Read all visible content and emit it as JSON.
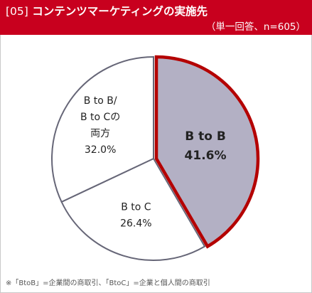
{
  "header": {
    "code": "[05]",
    "title": "コンテンツマーケティングの実施先",
    "subtitle": "（単一回答、n=605）"
  },
  "footnote": "※「BtoB」=企業間の商取引、「BtoC」=企業と個人間の商取引",
  "colors": {
    "header_bg": "#c8001e",
    "highlight_fill": "#b3b0c4",
    "highlight_stroke": "#b40000",
    "slice_fill": "#ffffff",
    "slice_stroke": "#666677"
  },
  "chart_data": {
    "type": "pie",
    "title": "コンテンツマーケティングの実施先",
    "unit": "%",
    "slices": [
      {
        "label_lines": [
          "B to B"
        ],
        "value": 41.6,
        "value_label": "41.6%",
        "highlight": true
      },
      {
        "label_lines": [
          "B to C"
        ],
        "value": 26.4,
        "value_label": "26.4%",
        "highlight": false
      },
      {
        "label_lines": [
          "B to B/",
          "B to Cの",
          "両方"
        ],
        "value": 32.0,
        "value_label": "32.0%",
        "highlight": false
      }
    ],
    "start": "12 o'clock",
    "direction": "clockwise"
  }
}
